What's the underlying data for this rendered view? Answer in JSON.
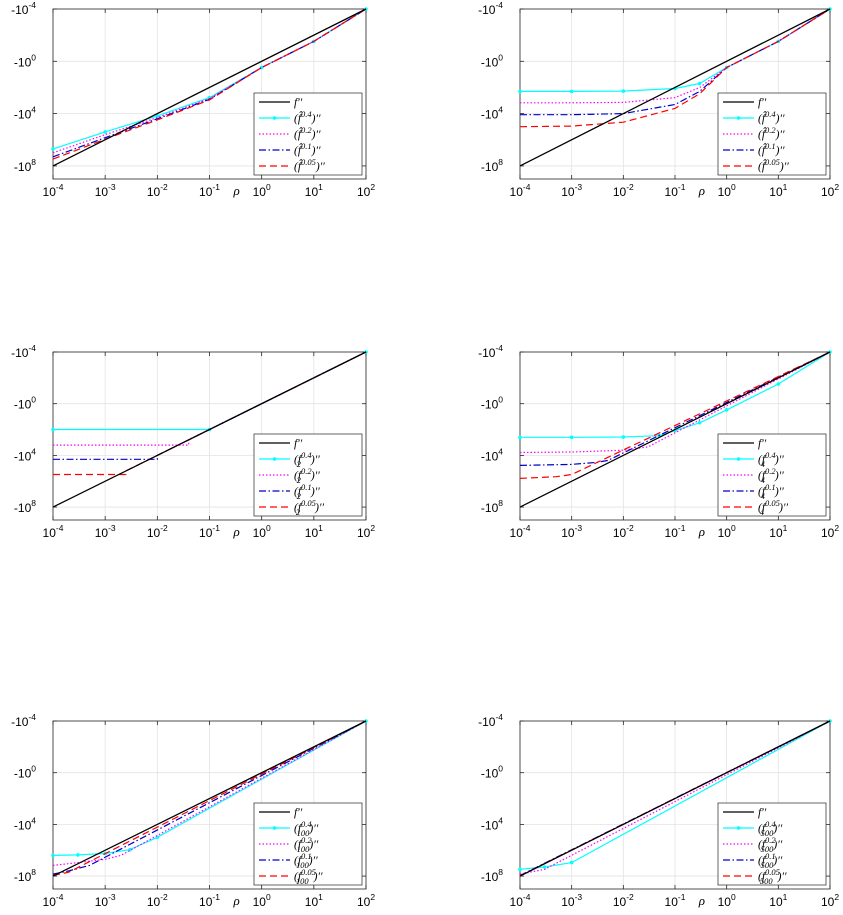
{
  "chart_data": [
    {
      "type": "line",
      "panel": "top-left",
      "xscale": "log",
      "xlim": [
        0.0001,
        100
      ],
      "yscale": "log",
      "yticks": [
        "-10^-4",
        "-10^0",
        "-10^4",
        "-10^8"
      ],
      "xlabel": "ρ",
      "grid": true,
      "legend_position": "bottom-right",
      "series": [
        {
          "name": "f''",
          "color": "#000000",
          "dash": "solid",
          "marker": "none",
          "x": [
            0.0001,
            100
          ],
          "y": [
            -100000000,
            -0.0001
          ]
        },
        {
          "name": "(f̂^{0.4})''",
          "color": "#00ffff",
          "dash": "solid",
          "marker": "dot",
          "x": [
            0.0001,
            0.001,
            0.01,
            0.1,
            1,
            10,
            100
          ],
          "y": [
            -5000000,
            -250000,
            -15000,
            -600,
            -3,
            -0.03,
            -0.0001
          ]
        },
        {
          "name": "(f̂^{0.2})''",
          "color": "#ff00ff",
          "dash": "dotted",
          "marker": "none",
          "x": [
            0.0001,
            0.001,
            0.01,
            0.1,
            1,
            10,
            100
          ],
          "y": [
            -10000000,
            -400000,
            -20000,
            -700,
            -3,
            -0.03,
            -0.0001
          ]
        },
        {
          "name": "(f̂^{0.1})''",
          "color": "#0000cc",
          "dash": "dashdot",
          "marker": "none",
          "x": [
            0.0001,
            0.001,
            0.01,
            0.1,
            1,
            10,
            100
          ],
          "y": [
            -20000000,
            -700000,
            -25000,
            -800,
            -3,
            -0.03,
            -0.0001
          ]
        },
        {
          "name": "(f̂^{0.05})''",
          "color": "#ff0000",
          "dash": "dashed",
          "marker": "none",
          "x": [
            0.0001,
            0.001,
            0.01,
            0.1,
            1,
            10,
            100
          ],
          "y": [
            -30000000,
            -900000,
            -30000,
            -900,
            -3,
            -0.03,
            -0.0001
          ]
        }
      ]
    },
    {
      "type": "line",
      "panel": "top-right",
      "xscale": "log",
      "xlim": [
        0.0001,
        100
      ],
      "yscale": "log",
      "yticks": [
        "-10^-4",
        "-10^0",
        "-10^4",
        "-10^8"
      ],
      "xlabel": "ρ",
      "grid": true,
      "legend_position": "bottom-right",
      "series": [
        {
          "name": "f''",
          "color": "#000000",
          "dash": "solid",
          "marker": "none",
          "x": [
            0.0001,
            100
          ],
          "y": [
            -100000000,
            -0.0001
          ]
        },
        {
          "name": "(f̂^{0.4})''",
          "color": "#00ffff",
          "dash": "solid",
          "marker": "dot",
          "x": [
            0.0001,
            0.001,
            0.01,
            0.1,
            0.3,
            1,
            10,
            100
          ],
          "y": [
            -200,
            -200,
            -190,
            -120,
            -50,
            -3,
            -0.03,
            -0.0001
          ]
        },
        {
          "name": "(f̂^{0.2})''",
          "color": "#ff00ff",
          "dash": "dotted",
          "marker": "none",
          "x": [
            0.0001,
            0.001,
            0.01,
            0.1,
            0.3,
            1,
            10,
            100
          ],
          "y": [
            -1500,
            -1500,
            -1400,
            -600,
            -100,
            -3,
            -0.03,
            -0.0001
          ]
        },
        {
          "name": "(f̂^{0.1})''",
          "color": "#0000cc",
          "dash": "dashdot",
          "marker": "none",
          "x": [
            0.0001,
            0.001,
            0.01,
            0.1,
            0.3,
            1,
            10,
            100
          ],
          "y": [
            -12000,
            -12000,
            -10000,
            -2000,
            -200,
            -3,
            -0.03,
            -0.0001
          ]
        },
        {
          "name": "(f̂^{0.05})''",
          "color": "#ff0000",
          "dash": "dashed",
          "marker": "none",
          "x": [
            0.0001,
            0.001,
            0.01,
            0.1,
            0.3,
            1,
            10,
            100
          ],
          "y": [
            -100000,
            -90000,
            -45000,
            -4000,
            -300,
            -3,
            -0.03,
            -0.0001
          ]
        }
      ]
    },
    {
      "type": "line",
      "panel": "middle-left",
      "xscale": "log",
      "xlim": [
        0.0001,
        100
      ],
      "yscale": "log",
      "yticks": [
        "-10^-4",
        "-10^0",
        "-10^4",
        "-10^8"
      ],
      "xlabel": "ρ",
      "grid": true,
      "legend_position": "bottom-right",
      "series": [
        {
          "name": "f''",
          "color": "#000000",
          "dash": "solid",
          "marker": "none",
          "x": [
            0.0001,
            100
          ],
          "y": [
            -100000000,
            -0.0001
          ]
        },
        {
          "name": "(f_2^{0.4})''",
          "color": "#00ffff",
          "dash": "solid",
          "marker": "dot",
          "x": [
            0.0001,
            0.1,
            100
          ],
          "y": [
            -100,
            -100,
            -0.0001
          ]
        },
        {
          "name": "(f_2^{0.2})''",
          "color": "#ff00ff",
          "dash": "dotted",
          "marker": "none",
          "x": [
            0.0001,
            0.04,
            0.04,
            100
          ],
          "y": [
            -1600,
            -1600,
            -600,
            -0.0001
          ]
        },
        {
          "name": "(f_2^{0.1})''",
          "color": "#0000cc",
          "dash": "dashdot",
          "marker": "none",
          "x": [
            0.0001,
            0.01,
            0.01,
            100
          ],
          "y": [
            -20000,
            -20000,
            -10000,
            -0.0001
          ]
        },
        {
          "name": "(f_2^{0.05})''",
          "color": "#ff0000",
          "dash": "dashed",
          "marker": "none",
          "x": [
            0.0001,
            0.0025,
            0.0025,
            100
          ],
          "y": [
            -300000,
            -300000,
            -160000,
            -0.0001
          ]
        }
      ]
    },
    {
      "type": "line",
      "panel": "middle-right",
      "xscale": "log",
      "xlim": [
        0.0001,
        100
      ],
      "yscale": "log",
      "yticks": [
        "-10^-4",
        "-10^0",
        "-10^4",
        "-10^8"
      ],
      "xlabel": "ρ",
      "grid": true,
      "legend_position": "bottom-right",
      "series": [
        {
          "name": "f''",
          "color": "#000000",
          "dash": "solid",
          "marker": "none",
          "x": [
            0.0001,
            100
          ],
          "y": [
            -100000000,
            -0.0001
          ]
        },
        {
          "name": "(f_4^{0.4})''",
          "color": "#00ffff",
          "dash": "solid",
          "marker": "dot",
          "x": [
            0.0001,
            0.001,
            0.01,
            0.05,
            0.1,
            0.3,
            1,
            10,
            100
          ],
          "y": [
            -400,
            -400,
            -380,
            -300,
            -120,
            -30,
            -3,
            -0.03,
            -0.0001
          ]
        },
        {
          "name": "(f_4^{0.2})''",
          "color": "#ff00ff",
          "dash": "dotted",
          "marker": "none",
          "x": [
            0.0001,
            0.001,
            0.01,
            0.03,
            100
          ],
          "y": [
            -6000,
            -5500,
            -4000,
            -2200,
            -0.0001
          ]
        },
        {
          "name": "(f_4^{0.1})''",
          "color": "#0000cc",
          "dash": "dashdot",
          "marker": "none",
          "x": [
            0.0001,
            0.001,
            0.003,
            0.005,
            100
          ],
          "y": [
            -60000,
            -50000,
            -35000,
            -25000,
            -0.0001
          ]
        },
        {
          "name": "(f_4^{0.05})''",
          "color": "#ff0000",
          "dash": "dashed",
          "marker": "none",
          "x": [
            0.0001,
            0.0005,
            0.001,
            100
          ],
          "y": [
            -600000,
            -450000,
            -300000,
            -0.0001
          ]
        }
      ]
    },
    {
      "type": "line",
      "panel": "bottom-left",
      "xscale": "log",
      "xlim": [
        0.0001,
        100
      ],
      "yscale": "log",
      "yticks": [
        "-10^-4",
        "-10^0",
        "-10^4",
        "-10^8"
      ],
      "xlabel": "ρ",
      "grid": true,
      "legend_position": "bottom-right",
      "series": [
        {
          "name": "f''",
          "color": "#000000",
          "dash": "solid",
          "marker": "none",
          "x": [
            0.0001,
            100
          ],
          "y": [
            -100000000,
            -0.0001
          ]
        },
        {
          "name": "(f_{100}^{0.4})''",
          "color": "#00ffff",
          "dash": "solid",
          "marker": "dot",
          "x": [
            0.0001,
            0.0003,
            0.001,
            0.003,
            0.01,
            100
          ],
          "y": [
            -2500000,
            -2300000,
            -1800000,
            -900000,
            -100000,
            -0.0001
          ]
        },
        {
          "name": "(f_{100}^{0.2})''",
          "color": "#ff00ff",
          "dash": "dotted",
          "marker": "none",
          "x": [
            0.0001,
            0.0003,
            0.001,
            0.002,
            100
          ],
          "y": [
            -15000000,
            -9000000,
            -5000000,
            -2500000,
            -0.0001
          ]
        },
        {
          "name": "(f_{100}^{0.1})''",
          "color": "#0000cc",
          "dash": "dashdot",
          "marker": "none",
          "x": [
            0.0001,
            0.0002,
            0.0005,
            100
          ],
          "y": [
            -70000000,
            -40000000,
            -15000000,
            -0.0001
          ]
        },
        {
          "name": "(f_{100}^{0.05})''",
          "color": "#ff0000",
          "dash": "dashed",
          "marker": "none",
          "x": [
            0.0001,
            0.0002,
            100
          ],
          "y": [
            -90000000,
            -50000000,
            -0.0001
          ]
        }
      ]
    },
    {
      "type": "line",
      "panel": "bottom-right",
      "xscale": "log",
      "xlim": [
        0.0001,
        100
      ],
      "yscale": "log",
      "yticks": [
        "-10^-4",
        "-10^0",
        "-10^4",
        "-10^8"
      ],
      "xlabel": "ρ",
      "grid": true,
      "legend_position": "bottom-right",
      "series": [
        {
          "name": "f''",
          "color": "#000000",
          "dash": "solid",
          "marker": "none",
          "x": [
            0.0001,
            100
          ],
          "y": [
            -100000000,
            -0.0001
          ]
        },
        {
          "name": "(f_{500}^{0.4})''",
          "color": "#00ffff",
          "dash": "solid",
          "marker": "dot",
          "x": [
            0.0001,
            0.0003,
            0.001,
            100
          ],
          "y": [
            -30000000,
            -20000000,
            -9000000,
            -0.0001
          ]
        },
        {
          "name": "(f_{500}^{0.2})''",
          "color": "#ff00ff",
          "dash": "dotted",
          "marker": "none",
          "x": [
            0.0001,
            0.0003,
            100
          ],
          "y": [
            -70000000,
            -30000000,
            -0.0001
          ]
        },
        {
          "name": "(f_{500}^{0.1})''",
          "color": "#0000cc",
          "dash": "dashdot",
          "marker": "none",
          "x": [
            0.0001,
            100
          ],
          "y": [
            -90000000,
            -0.0001
          ]
        },
        {
          "name": "(f_{500}^{0.05})''",
          "color": "#ff0000",
          "dash": "dashed",
          "marker": "none",
          "x": [
            0.0001,
            100
          ],
          "y": [
            -95000000,
            -0.0001
          ]
        }
      ]
    }
  ],
  "legends": [
    [
      {
        "lead": "f",
        "tail": "′′"
      },
      {
        "lead": "(f̂",
        "sup": "0.4",
        "tail": ")′′"
      },
      {
        "lead": "(f̂",
        "sup": "0.2",
        "tail": ")′′"
      },
      {
        "lead": "(f̂",
        "sup": "0.1",
        "tail": ")′′"
      },
      {
        "lead": "(f̂",
        "sup": "0.05",
        "tail": ")′′"
      }
    ],
    [
      {
        "lead": "f",
        "tail": "′′"
      },
      {
        "lead": "(f̂",
        "sup": "0.4",
        "tail": ")′′"
      },
      {
        "lead": "(f̂",
        "sup": "0.2",
        "tail": ")′′"
      },
      {
        "lead": "(f̂",
        "sup": "0.1",
        "tail": ")′′"
      },
      {
        "lead": "(f̂",
        "sup": "0.05",
        "tail": ")′′"
      }
    ],
    [
      {
        "lead": "f",
        "tail": "′′"
      },
      {
        "lead": "(f",
        "sup": "0.4",
        "sub": "2",
        "tail": ")′′"
      },
      {
        "lead": "(f",
        "sup": "0.2",
        "sub": "2",
        "tail": ")′′"
      },
      {
        "lead": "(f",
        "sup": "0.1",
        "sub": "2",
        "tail": ")′′"
      },
      {
        "lead": "(f",
        "sup": "0.05",
        "sub": "2",
        "tail": ")′′"
      }
    ],
    [
      {
        "lead": "f",
        "tail": "′′"
      },
      {
        "lead": "(f",
        "sup": "0.4",
        "sub": "4",
        "tail": ")′′"
      },
      {
        "lead": "(f",
        "sup": "0.2",
        "sub": "4",
        "tail": ")′′"
      },
      {
        "lead": "(f",
        "sup": "0.1",
        "sub": "4",
        "tail": ")′′"
      },
      {
        "lead": "(f",
        "sup": "0.05",
        "sub": "4",
        "tail": ")′′"
      }
    ],
    [
      {
        "lead": "f",
        "tail": "′′"
      },
      {
        "lead": "(f",
        "sup": "0.4",
        "sub": "100",
        "tail": ")′′"
      },
      {
        "lead": "(f",
        "sup": "0.2",
        "sub": "100",
        "tail": ")′′"
      },
      {
        "lead": "(f",
        "sup": "0.1",
        "sub": "100",
        "tail": ")′′"
      },
      {
        "lead": "(f",
        "sup": "0.05",
        "sub": "100",
        "tail": ")′′"
      }
    ],
    [
      {
        "lead": "f",
        "tail": "′′"
      },
      {
        "lead": "(f",
        "sup": "0.4",
        "sub": "500",
        "tail": ")′′"
      },
      {
        "lead": "(f",
        "sup": "0.2",
        "sub": "500",
        "tail": ")′′"
      },
      {
        "lead": "(f",
        "sup": "0.1",
        "sub": "500",
        "tail": ")′′"
      },
      {
        "lead": "(f",
        "sup": "0.05",
        "sub": "500",
        "tail": ")′′"
      }
    ]
  ],
  "tick_labels": {
    "x": [
      {
        "base": "10",
        "exp": "-4"
      },
      {
        "base": "10",
        "exp": "-3"
      },
      {
        "base": "10",
        "exp": "-2"
      },
      {
        "base": "10",
        "exp": "-1"
      },
      {
        "base": "10",
        "exp": "0"
      },
      {
        "base": "10",
        "exp": "1"
      },
      {
        "base": "10",
        "exp": "2"
      }
    ],
    "y": [
      {
        "base": "-10",
        "exp": "-4"
      },
      {
        "base": "-10",
        "exp": "0"
      },
      {
        "base": "-10",
        "exp": "4"
      },
      {
        "base": "-10",
        "exp": "8"
      }
    ]
  }
}
